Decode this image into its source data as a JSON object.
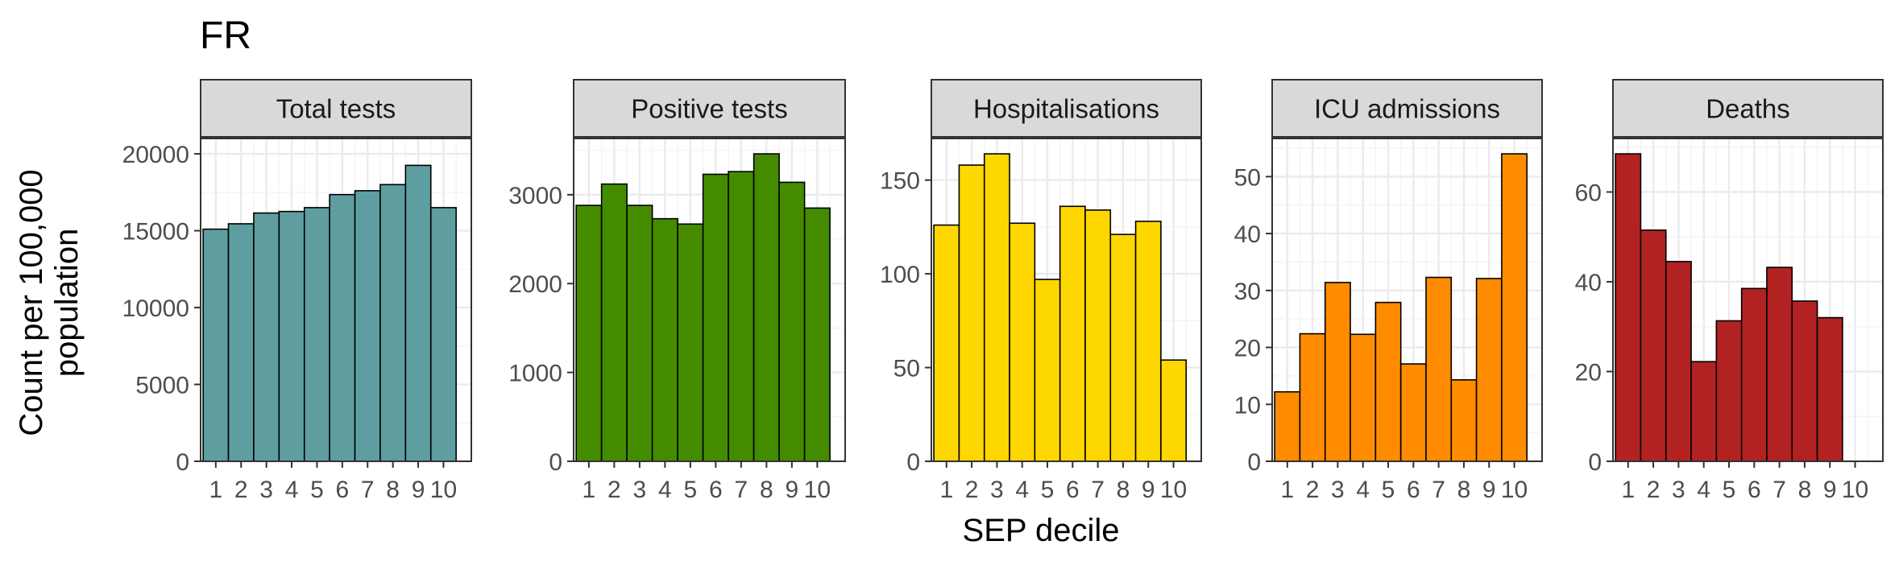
{
  "figure": {
    "title": "FR",
    "ylabel_line1": "Count per 100,000",
    "ylabel_line2": "population",
    "xlabel": "SEP decile"
  },
  "chart_data": [
    {
      "type": "bar",
      "panel": "Total tests",
      "color": "#5F9EA0",
      "categories": [
        "1",
        "2",
        "3",
        "4",
        "5",
        "6",
        "7",
        "8",
        "9",
        "10"
      ],
      "values": [
        15100,
        15450,
        16150,
        16250,
        16500,
        17350,
        17600,
        18000,
        19250,
        16500
      ],
      "ylim": [
        0,
        20000
      ],
      "yticks": [
        0,
        5000,
        10000,
        15000,
        20000
      ],
      "grid": true
    },
    {
      "type": "bar",
      "panel": "Positive tests",
      "color": "#458B00",
      "categories": [
        "1",
        "2",
        "3",
        "4",
        "5",
        "6",
        "7",
        "8",
        "9",
        "10"
      ],
      "values": [
        2880,
        3120,
        2880,
        2730,
        2670,
        3230,
        3260,
        3460,
        3140,
        2850
      ],
      "ylim": [
        0,
        3460
      ],
      "yticks": [
        0,
        1000,
        2000,
        3000
      ],
      "grid": true
    },
    {
      "type": "bar",
      "panel": "Hospitalisations",
      "color": "#FFD700",
      "categories": [
        "1",
        "2",
        "3",
        "4",
        "5",
        "6",
        "7",
        "8",
        "9",
        "10"
      ],
      "values": [
        126,
        158,
        164,
        127,
        97,
        136,
        134,
        121,
        128,
        54
      ],
      "ylim": [
        0,
        164
      ],
      "yticks": [
        0,
        50,
        100,
        150
      ],
      "grid": true
    },
    {
      "type": "bar",
      "panel": "ICU admissions",
      "color": "#FF8C00",
      "categories": [
        "1",
        "2",
        "3",
        "4",
        "5",
        "6",
        "7",
        "8",
        "9",
        "10"
      ],
      "values": [
        12.2,
        22.4,
        31.4,
        22.3,
        27.9,
        17.1,
        32.3,
        14.3,
        32.1,
        54
      ],
      "ylim": [
        0,
        54
      ],
      "yticks": [
        0,
        10,
        20,
        30,
        40,
        50
      ],
      "grid": true
    },
    {
      "type": "bar",
      "panel": "Deaths",
      "color": "#B22222",
      "categories": [
        "1",
        "2",
        "3",
        "4",
        "5",
        "6",
        "7",
        "8",
        "9",
        "10"
      ],
      "values": [
        68.5,
        51.5,
        44.5,
        22.2,
        31.3,
        38.5,
        43.2,
        35.7,
        32.0,
        0
      ],
      "ylim": [
        0,
        68.5
      ],
      "yticks": [
        0,
        20,
        40,
        60
      ],
      "grid": true
    }
  ]
}
